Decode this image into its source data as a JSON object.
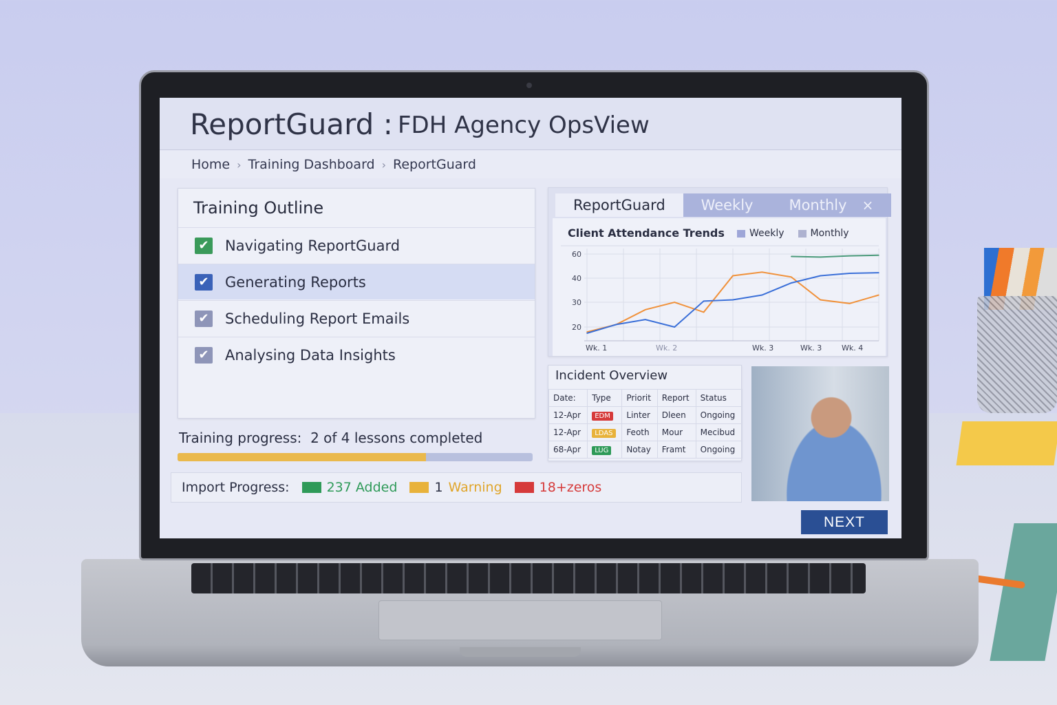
{
  "header": {
    "app_name": "ReportGuard",
    "separator": ":",
    "subtitle": "FDH Agency OpsView"
  },
  "breadcrumb": [
    "Home",
    "Training Dashboard",
    "ReportGuard"
  ],
  "outline": {
    "title": "Training Outline",
    "items": [
      {
        "label": "Navigating ReportGuard",
        "checked": true,
        "color": "#3a9a5a"
      },
      {
        "label": "Generating Reports",
        "checked": true,
        "color": "#3a62b8",
        "selected": true
      },
      {
        "label": "Scheduling Report Emails",
        "checked": true,
        "color": "#8e95b8"
      },
      {
        "label": "Analysing Data Insights",
        "checked": true,
        "color": "#8e95b8"
      }
    ]
  },
  "training_progress": {
    "label": "Training progress:",
    "text": "2 of 4 lessons completed",
    "fill_fraction": 0.7
  },
  "import_progress": {
    "label": "Import Progress:",
    "added": "237 Added",
    "warning_count": "1",
    "warning": "Warning",
    "errors": "18+zeros",
    "colors": {
      "added": "#2e9a58",
      "warning": "#e8b23a",
      "error": "#d63a3a"
    }
  },
  "chart_panel": {
    "tabs": [
      "ReportGuard",
      "Weekly",
      "Monthly"
    ],
    "close_icon": "×"
  },
  "chart_data": {
    "type": "line",
    "title": "Client Attendance Trends",
    "legend": [
      "Weekly",
      "Monthly"
    ],
    "legend_placement": "top",
    "x_tick_labels": [
      "Wk. 1",
      "Wk. 2",
      "Wk. 3",
      "Wk. 3",
      "Wk. 4"
    ],
    "y_tick_labels": [
      20,
      30,
      40,
      60
    ],
    "grid": true,
    "x": [
      0,
      1,
      2,
      3,
      4,
      5,
      6,
      7,
      8,
      9,
      10
    ],
    "series": [
      {
        "color": "#f0913a",
        "values": [
          18,
          21,
          27,
          30,
          26,
          42,
          45,
          41,
          31,
          29.5,
          33
        ]
      },
      {
        "color": "#3a6fd8",
        "values": [
          17.5,
          21,
          23,
          20,
          30.5,
          31,
          33,
          38,
          42,
          44,
          44.5
        ]
      },
      {
        "color": "#4a9a7a",
        "values": [
          null,
          null,
          null,
          null,
          null,
          null,
          null,
          58,
          57.5,
          58.5,
          59
        ]
      }
    ]
  },
  "incident": {
    "title": "Incident Overview",
    "columns": [
      "Date:",
      "Type",
      "Priorit",
      "Report",
      "Status"
    ],
    "rows": [
      {
        "date": "12-Apr",
        "type": "EDM",
        "type_color": "#d63a3a",
        "priority": "Linter",
        "report": "Dleen",
        "status": "Ongoing"
      },
      {
        "date": "12-Apr",
        "type": "LDAS",
        "type_color": "#e8b23a",
        "priority": "Feoth",
        "report": "Mour",
        "status": "Mecibud"
      },
      {
        "date": "68-Apr",
        "type": "LUG",
        "type_color": "#2e9a58",
        "priority": "Notay",
        "report": "Framt",
        "status": "Ongoing"
      }
    ]
  },
  "next_button": "NEXT"
}
